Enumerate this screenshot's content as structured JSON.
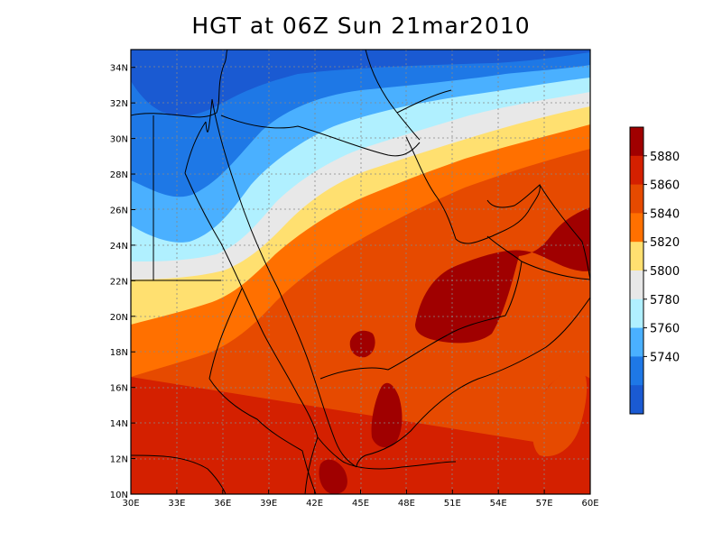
{
  "title": "HGT at 06Z Sun 21mar2010",
  "variable": "HGT",
  "map": {
    "lon_range": [
      30,
      60
    ],
    "lat_range": [
      10,
      35
    ],
    "grid": true,
    "lon_ticks": [
      "30E",
      "33E",
      "36E",
      "39E",
      "42E",
      "45E",
      "48E",
      "51E",
      "54E",
      "57E",
      "60E"
    ],
    "lat_ticks": [
      "10N",
      "12N",
      "14N",
      "16N",
      "18N",
      "20N",
      "22N",
      "24N",
      "26N",
      "28N",
      "30N",
      "32N",
      "34N"
    ]
  },
  "colorbar": {
    "placement": "right",
    "labels": [
      "5880",
      "5860",
      "5840",
      "5820",
      "5800",
      "5780",
      "5760",
      "5740"
    ],
    "colors": [
      "#a00000",
      "#d42000",
      "#e64a00",
      "#ff7000",
      "#ffe070",
      "#e8e8e8",
      "#b0f0ff",
      "#4ab0ff",
      "#1e78e6",
      "#1a5ad2"
    ]
  },
  "colors": {
    "bg": "#ffffff",
    "grid": "#888888",
    "border": "#000000"
  }
}
